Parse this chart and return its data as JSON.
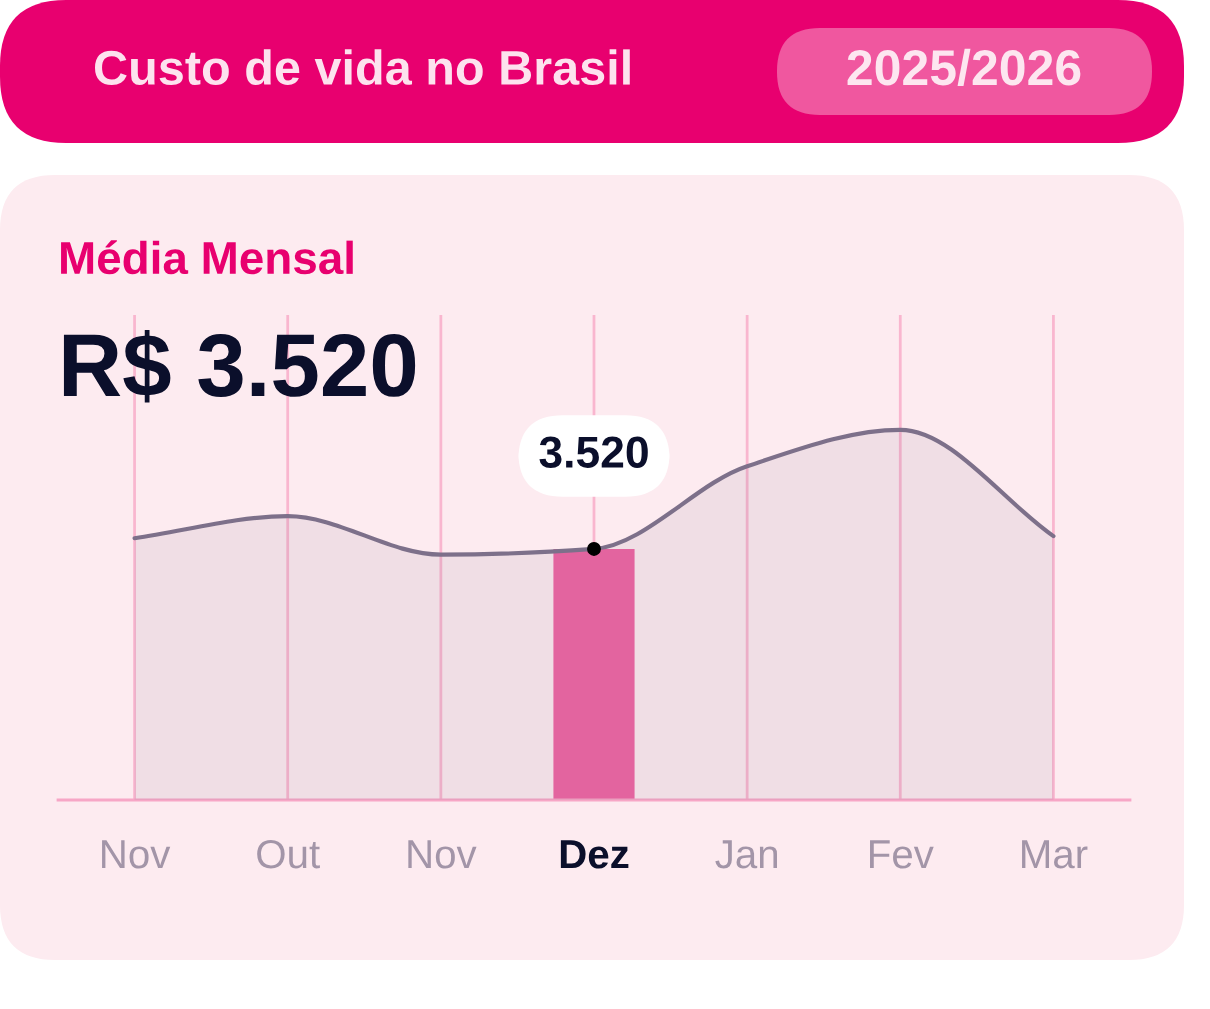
{
  "chart_data": {
    "type": "area",
    "title": "Custo de vida no Brasil",
    "subtitle": "2025/2026",
    "annotations": [
      "Média Mensal",
      "R$ 3.520"
    ],
    "categories": [
      "Nov",
      "Out",
      "Nov",
      "Dez",
      "Jan",
      "Fev",
      "Mar"
    ],
    "ylim": [
      0,
      6800
    ],
    "tick_labels": "x",
    "grid": "x",
    "series": [
      {
        "color": "#7d708a",
        "values": [
          3670,
          3980,
          3440,
          3520,
          4680,
          5190,
          3700
        ]
      },
      {
        "type": "bar",
        "color": "#ef64a2",
        "values": [
          null,
          null,
          null,
          3520,
          null,
          null,
          null
        ],
        "value_labels": [
          null,
          null,
          null,
          "3.520",
          null,
          null,
          null
        ]
      },
      {
        "type": "scatter",
        "color": "#000000",
        "marker": "circle",
        "x": [
          "Dez"
        ],
        "values": [
          3520
        ]
      }
    ]
  }
}
